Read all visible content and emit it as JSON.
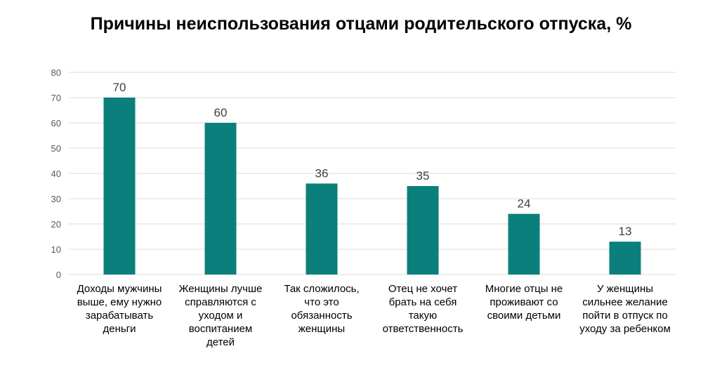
{
  "chart_data": {
    "type": "bar",
    "title": "Причины неиспользования отцами родительского отпуска, %",
    "categories": [
      [
        "Доходы мужчины",
        "выше, ему нужно",
        "зарабатывать",
        "деньги"
      ],
      [
        "Женщины лучше",
        "справляются с",
        "уходом и",
        "воспитанием",
        "детей"
      ],
      [
        "Так сложилось,",
        "что это",
        "обязанность",
        "женщины"
      ],
      [
        "Отец не хочет",
        "брать на себя",
        "такую",
        "ответственность"
      ],
      [
        "Многие отцы не",
        "проживают со",
        "своими детьми"
      ],
      [
        "У женщины",
        "сильнее желание",
        "пойти в отпуск по",
        "уходу за ребенком"
      ]
    ],
    "values": [
      70,
      60,
      36,
      35,
      24,
      13
    ],
    "ylim": [
      0,
      80
    ],
    "yticks": [
      0,
      10,
      20,
      30,
      40,
      50,
      60,
      70,
      80
    ],
    "grid": true,
    "data_labels": true,
    "xlabel": "",
    "ylabel": "",
    "colors": {
      "bar": "#0B7F7B",
      "grid": "#D9D9D9"
    }
  }
}
